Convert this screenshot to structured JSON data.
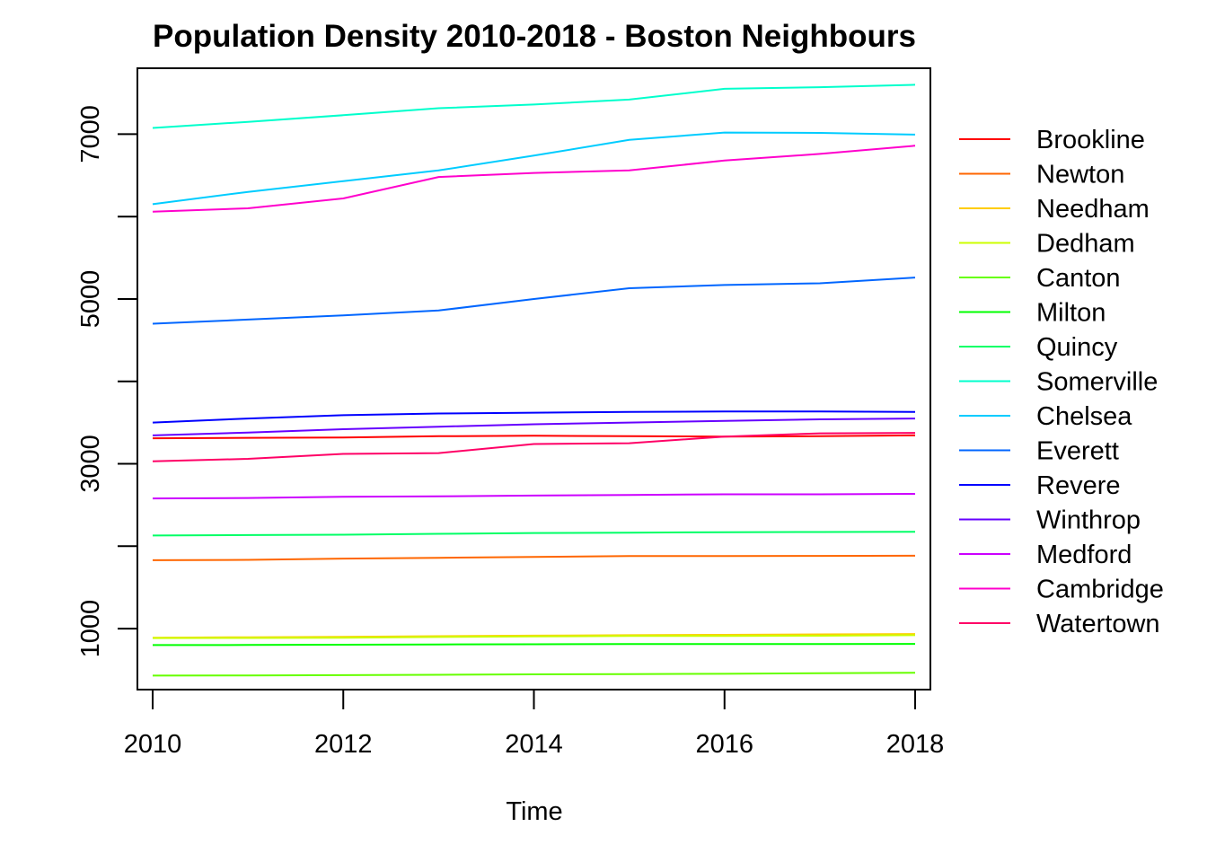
{
  "chart_data": {
    "type": "line",
    "title": "Population Density 2010-2018 - Boston Neighbours",
    "xlabel": "Time",
    "ylabel": "",
    "x": [
      2010,
      2011,
      2012,
      2013,
      2014,
      2015,
      2016,
      2017,
      2018
    ],
    "xlim": [
      2009.84,
      2018.16
    ],
    "ylim": [
      260,
      7800
    ],
    "x_ticks": [
      "2010",
      "2012",
      "2014",
      "2016",
      "2018"
    ],
    "y_ticks": [
      "1000",
      "3000",
      "5000",
      "7000"
    ],
    "grid": false,
    "legend_position": "right",
    "series": [
      {
        "name": "Brookline",
        "color": "#FF0000",
        "values": [
          3310,
          3315,
          3320,
          3335,
          3340,
          3335,
          3330,
          3335,
          3345
        ]
      },
      {
        "name": "Newton",
        "color": "#FF6600",
        "values": [
          1830,
          1835,
          1850,
          1860,
          1870,
          1880,
          1880,
          1882,
          1885
        ]
      },
      {
        "name": "Needham",
        "color": "#FFCC00",
        "values": [
          890,
          895,
          900,
          908,
          915,
          920,
          925,
          930,
          935
        ]
      },
      {
        "name": "Dedham",
        "color": "#CCFF00",
        "values": [
          885,
          886,
          890,
          898,
          905,
          910,
          912,
          914,
          920
        ]
      },
      {
        "name": "Canton",
        "color": "#66FF00",
        "values": [
          430,
          432,
          435,
          440,
          445,
          448,
          452,
          458,
          465
        ]
      },
      {
        "name": "Milton",
        "color": "#00FF00",
        "values": [
          800,
          802,
          805,
          808,
          810,
          812,
          812,
          813,
          815
        ]
      },
      {
        "name": "Quincy",
        "color": "#00FF66",
        "values": [
          2130,
          2135,
          2140,
          2150,
          2160,
          2165,
          2170,
          2172,
          2175
        ]
      },
      {
        "name": "Somerville",
        "color": "#00FFCC",
        "values": [
          7075,
          7150,
          7230,
          7315,
          7360,
          7420,
          7550,
          7570,
          7600
        ]
      },
      {
        "name": "Chelsea",
        "color": "#00CCFF",
        "values": [
          6150,
          6300,
          6430,
          6560,
          6740,
          6930,
          7020,
          7015,
          6995
        ]
      },
      {
        "name": "Everett",
        "color": "#0066FF",
        "values": [
          4700,
          4750,
          4800,
          4860,
          5000,
          5130,
          5170,
          5190,
          5260
        ]
      },
      {
        "name": "Revere",
        "color": "#0000FF",
        "values": [
          3500,
          3550,
          3590,
          3610,
          3620,
          3630,
          3635,
          3635,
          3630
        ]
      },
      {
        "name": "Winthrop",
        "color": "#6600FF",
        "values": [
          3345,
          3380,
          3420,
          3450,
          3480,
          3500,
          3520,
          3540,
          3550
        ]
      },
      {
        "name": "Medford",
        "color": "#CC00FF",
        "values": [
          2580,
          2585,
          2600,
          2605,
          2615,
          2622,
          2630,
          2630,
          2635
        ]
      },
      {
        "name": "Cambridge",
        "color": "#FF00CC",
        "values": [
          6060,
          6100,
          6220,
          6480,
          6530,
          6560,
          6680,
          6760,
          6860
        ]
      },
      {
        "name": "Watertown",
        "color": "#FF0066",
        "values": [
          3030,
          3060,
          3120,
          3130,
          3240,
          3250,
          3330,
          3370,
          3375
        ]
      }
    ]
  }
}
